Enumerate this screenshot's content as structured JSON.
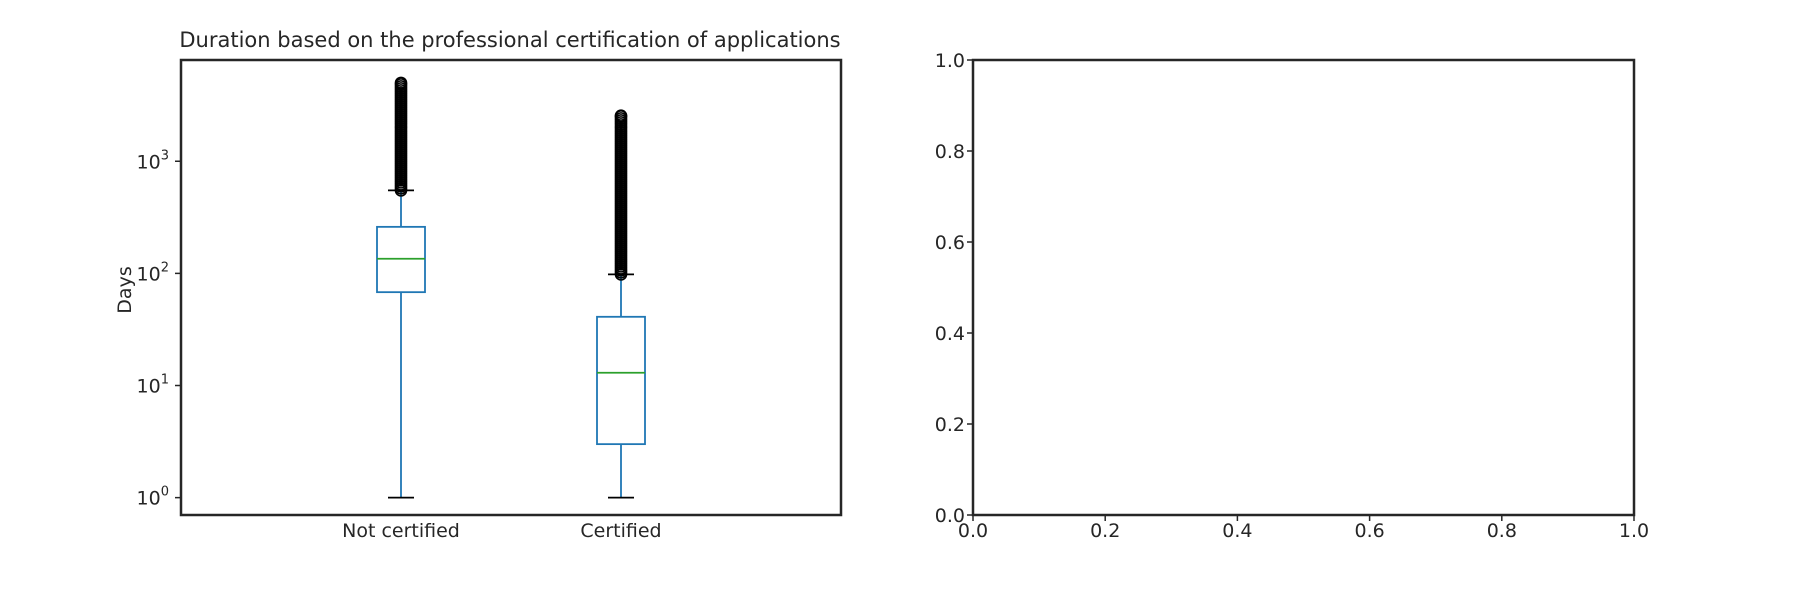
{
  "chart_data": [
    {
      "type": "box",
      "title": "Duration based on the professional certification of applications",
      "xlabel": "",
      "ylabel": "Days",
      "yscale": "log",
      "ylim": [
        0.7,
        8000
      ],
      "yticks": [
        {
          "value": 1,
          "base": "10",
          "exp": "0"
        },
        {
          "value": 10,
          "base": "10",
          "exp": "1"
        },
        {
          "value": 100,
          "base": "10",
          "exp": "2"
        },
        {
          "value": 1000,
          "base": "10",
          "exp": "3"
        }
      ],
      "categories": [
        "Not certified",
        "Certified"
      ],
      "boxes": [
        {
          "category": "Not certified",
          "whisker_low": 1,
          "q1": 68,
          "median": 135,
          "q3": 260,
          "whisker_high": 550,
          "outliers_min": 550,
          "outliers_max": 5000
        },
        {
          "category": "Certified",
          "whisker_low": 1,
          "q1": 3,
          "median": 13,
          "q3": 41,
          "whisker_high": 98,
          "outliers_min": 98,
          "outliers_max": 2550
        }
      ],
      "colors": {
        "box": "#1f77b4",
        "median": "#2ca02c",
        "whisker_cap": "#000000",
        "outlier": "#000000",
        "frame": "#262626"
      },
      "grid": false
    },
    {
      "type": "empty",
      "xlim": [
        0.0,
        1.0
      ],
      "ylim": [
        0.0,
        1.0
      ],
      "xticks": [
        "0.0",
        "0.2",
        "0.4",
        "0.6",
        "0.8",
        "1.0"
      ],
      "yticks": [
        "0.0",
        "0.2",
        "0.4",
        "0.6",
        "0.8",
        "1.0"
      ],
      "grid": false
    }
  ]
}
